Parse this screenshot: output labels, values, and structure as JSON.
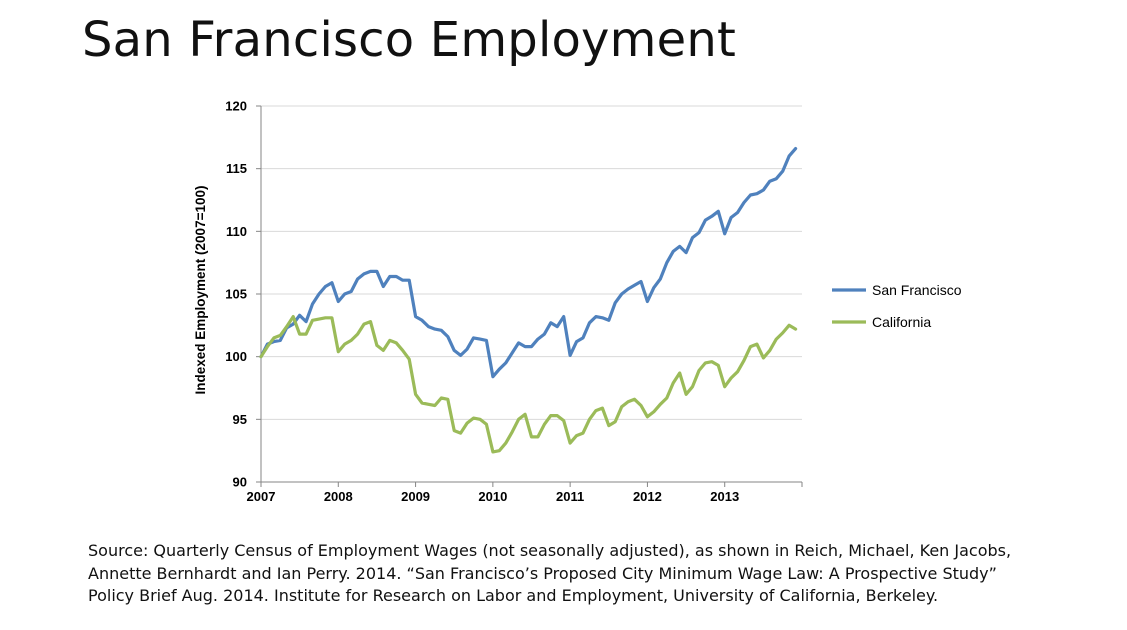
{
  "slide": {
    "title": "San Francisco Employment",
    "source_lines": [
      "Source: Quarterly Census of Employment Wages (not seasonally adjusted), as shown in Reich, Michael, Ken Jacobs,",
      "Annette Bernhardt and Ian Perry. 2014. “San Francisco’s Proposed City Minimum Wage Law: A Prospective Study”",
      "Policy Brief Aug. 2014. Institute for Research on Labor and Employment, University of California, Berkeley."
    ]
  },
  "chart_data": {
    "type": "line",
    "title": "",
    "xlabel": "",
    "ylabel": "Indexed Employment (2007=100)",
    "xlim": [
      2007,
      2014
    ],
    "ylim": [
      90,
      120
    ],
    "y_ticks": [
      90,
      95,
      100,
      105,
      110,
      115,
      120
    ],
    "x_ticks": [
      2007,
      2008,
      2009,
      2010,
      2011,
      2012,
      2013
    ],
    "grid": true,
    "legend_position": "right",
    "series": [
      {
        "name": "San Francisco",
        "color": "#4f81bd",
        "x": [
          2007.0,
          2007.083,
          2007.167,
          2007.25,
          2007.333,
          2007.417,
          2007.5,
          2007.583,
          2007.667,
          2007.75,
          2007.833,
          2007.917,
          2008.0,
          2008.083,
          2008.167,
          2008.25,
          2008.333,
          2008.417,
          2008.5,
          2008.583,
          2008.667,
          2008.75,
          2008.833,
          2008.917,
          2009.0,
          2009.083,
          2009.167,
          2009.25,
          2009.333,
          2009.417,
          2009.5,
          2009.583,
          2009.667,
          2009.75,
          2009.833,
          2009.917,
          2010.0,
          2010.083,
          2010.167,
          2010.25,
          2010.333,
          2010.417,
          2010.5,
          2010.583,
          2010.667,
          2010.75,
          2010.833,
          2010.917,
          2011.0,
          2011.083,
          2011.167,
          2011.25,
          2011.333,
          2011.417,
          2011.5,
          2011.583,
          2011.667,
          2011.75,
          2011.833,
          2011.917,
          2012.0,
          2012.083,
          2012.167,
          2012.25,
          2012.333,
          2012.417,
          2012.5,
          2012.583,
          2012.667,
          2012.75,
          2012.833,
          2012.917,
          2013.0,
          2013.083,
          2013.167,
          2013.25,
          2013.333,
          2013.417,
          2013.5,
          2013.583,
          2013.667,
          2013.75,
          2013.833,
          2013.917
        ],
        "values": [
          100.0,
          101.0,
          101.2,
          101.3,
          102.3,
          102.6,
          103.3,
          102.8,
          104.2,
          105.0,
          105.6,
          105.9,
          104.4,
          105.0,
          105.2,
          106.2,
          106.6,
          106.8,
          106.8,
          105.6,
          106.4,
          106.4,
          106.1,
          106.1,
          103.2,
          102.9,
          102.4,
          102.2,
          102.1,
          101.6,
          100.5,
          100.1,
          100.6,
          101.5,
          101.4,
          101.3,
          98.4,
          99.0,
          99.5,
          100.3,
          101.1,
          100.8,
          100.8,
          101.4,
          101.8,
          102.7,
          102.4,
          103.2,
          100.1,
          101.2,
          101.5,
          102.7,
          103.2,
          103.1,
          102.9,
          104.3,
          105.0,
          105.4,
          105.7,
          106.0,
          104.4,
          105.5,
          106.2,
          107.5,
          108.4,
          108.8,
          108.3,
          109.5,
          109.9,
          110.9,
          111.2,
          111.6,
          109.8,
          111.1,
          111.5,
          112.3,
          112.9,
          113.0,
          113.3,
          114.0,
          114.2,
          114.8,
          116.0,
          116.6
        ]
      },
      {
        "name": "California",
        "color": "#9bbb59",
        "x": [
          2007.0,
          2007.083,
          2007.167,
          2007.25,
          2007.333,
          2007.417,
          2007.5,
          2007.583,
          2007.667,
          2007.75,
          2007.833,
          2007.917,
          2008.0,
          2008.083,
          2008.167,
          2008.25,
          2008.333,
          2008.417,
          2008.5,
          2008.583,
          2008.667,
          2008.75,
          2008.833,
          2008.917,
          2009.0,
          2009.083,
          2009.167,
          2009.25,
          2009.333,
          2009.417,
          2009.5,
          2009.583,
          2009.667,
          2009.75,
          2009.833,
          2009.917,
          2010.0,
          2010.083,
          2010.167,
          2010.25,
          2010.333,
          2010.417,
          2010.5,
          2010.583,
          2010.667,
          2010.75,
          2010.833,
          2010.917,
          2011.0,
          2011.083,
          2011.167,
          2011.25,
          2011.333,
          2011.417,
          2011.5,
          2011.583,
          2011.667,
          2011.75,
          2011.833,
          2011.917,
          2012.0,
          2012.083,
          2012.167,
          2012.25,
          2012.333,
          2012.417,
          2012.5,
          2012.583,
          2012.667,
          2012.75,
          2012.833,
          2012.917,
          2013.0,
          2013.083,
          2013.167,
          2013.25,
          2013.333,
          2013.417,
          2013.5,
          2013.583,
          2013.667,
          2013.75,
          2013.833,
          2013.917
        ],
        "values": [
          100.0,
          100.8,
          101.5,
          101.7,
          102.4,
          103.2,
          101.8,
          101.8,
          102.9,
          103.0,
          103.1,
          103.1,
          100.4,
          101.0,
          101.3,
          101.8,
          102.6,
          102.8,
          100.9,
          100.5,
          101.3,
          101.1,
          100.5,
          99.8,
          97.0,
          96.3,
          96.2,
          96.1,
          96.7,
          96.6,
          94.1,
          93.9,
          94.7,
          95.1,
          95.0,
          94.6,
          92.4,
          92.5,
          93.1,
          94.0,
          95.0,
          95.4,
          93.6,
          93.6,
          94.6,
          95.3,
          95.3,
          94.9,
          93.1,
          93.7,
          93.9,
          95.0,
          95.7,
          95.9,
          94.5,
          94.8,
          96.0,
          96.4,
          96.6,
          96.1,
          95.2,
          95.6,
          96.2,
          96.7,
          97.9,
          98.7,
          97.0,
          97.6,
          98.9,
          99.5,
          99.6,
          99.3,
          97.6,
          98.3,
          98.8,
          99.7,
          100.8,
          101.0,
          99.9,
          100.5,
          101.4,
          101.9,
          102.5,
          102.2
        ]
      }
    ]
  }
}
